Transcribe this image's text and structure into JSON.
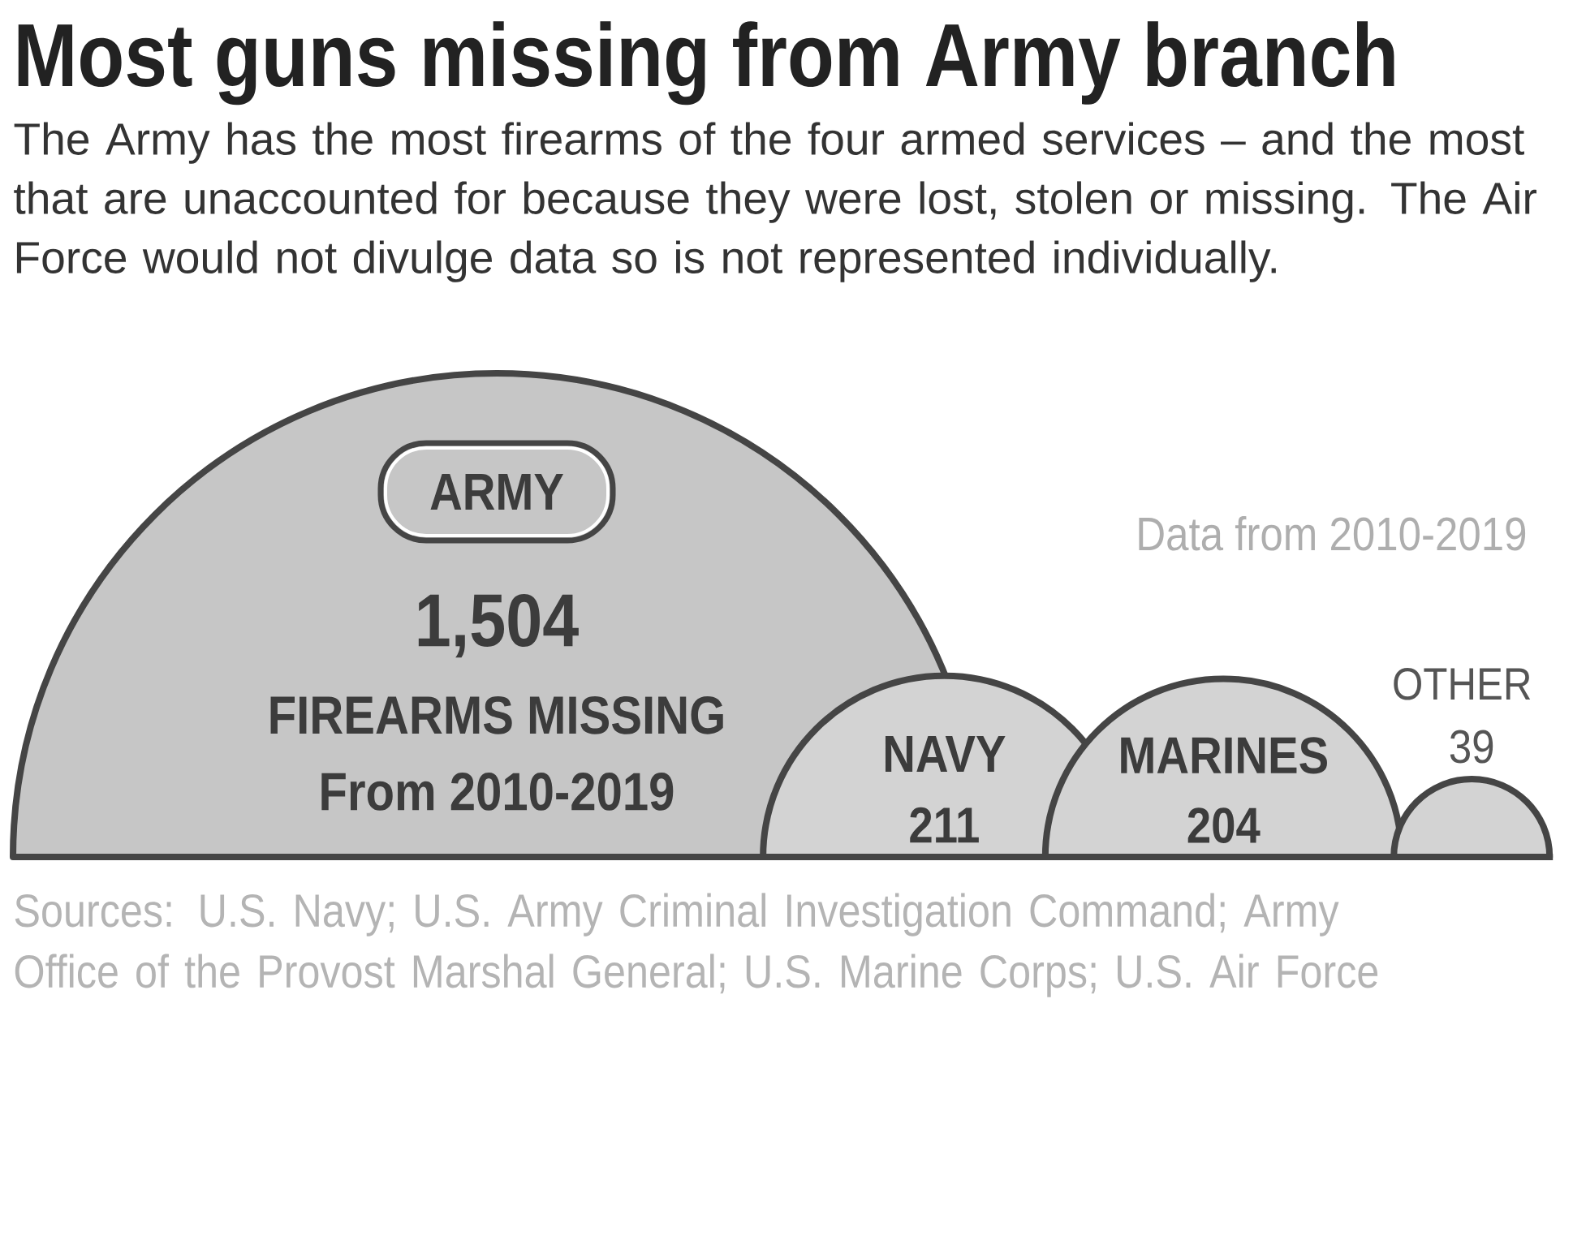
{
  "chart_data": {
    "type": "other",
    "title": "Most guns missing from Army branch",
    "subtitle": "The Army has the most firearms of the four armed services – and the most that are unaccounted for because they were lost, stolen or missing. The Air Force would not divulge data so is not represented individually.",
    "categories": [
      "ARMY",
      "NAVY",
      "MARINES",
      "OTHER"
    ],
    "values": [
      1504,
      211,
      204,
      39
    ],
    "value_labels": [
      "1,504",
      "211",
      "204",
      "39"
    ],
    "colors": [
      "#c6c6c6",
      "#d3d3d3",
      "#d3d3d3",
      "#d3d3d3"
    ],
    "annotations": [
      "FIREARMS MISSING",
      "From 2010-2019",
      "Data from 2010-2019",
      "Sources: U.S. Navy; U.S. Army Criminal Investigation Command; Army Office of the Provost Marshal General; U.S. Marine Corps; U.S. Air Force"
    ]
  }
}
